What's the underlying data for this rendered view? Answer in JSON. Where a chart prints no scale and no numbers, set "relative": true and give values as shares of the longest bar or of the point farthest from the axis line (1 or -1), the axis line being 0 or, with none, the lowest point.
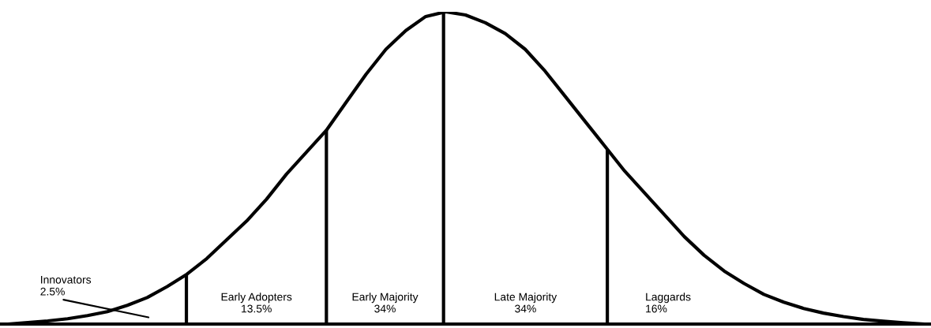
{
  "chart_data": {
    "type": "line",
    "relative": true,
    "color": "#000000",
    "marker": "none",
    "line_style": "solid",
    "categories": [
      null,
      null,
      null,
      null,
      null,
      null,
      null,
      null,
      null,
      null,
      null,
      null,
      null,
      null,
      null,
      null,
      null,
      null,
      null,
      null,
      null,
      null,
      null,
      null,
      null,
      null,
      null,
      null,
      null,
      null,
      null,
      null,
      null,
      null,
      null,
      null,
      null,
      null,
      null,
      null,
      null,
      null,
      null,
      null,
      null,
      null,
      null
    ],
    "values": [
      0.0,
      0.005,
      0.01,
      0.017,
      0.027,
      0.04,
      0.06,
      0.085,
      0.12,
      0.16,
      0.21,
      0.27,
      0.33,
      0.4,
      0.48,
      0.55,
      0.62,
      0.71,
      0.8,
      0.88,
      0.94,
      0.985,
      1.0,
      0.99,
      0.965,
      0.93,
      0.88,
      0.81,
      0.73,
      0.65,
      0.57,
      0.49,
      0.42,
      0.35,
      0.28,
      0.22,
      0.17,
      0.13,
      0.095,
      0.07,
      0.05,
      0.035,
      0.024,
      0.015,
      0.009,
      0.004,
      0.0
    ],
    "annotations": [
      "Innovators\n2.5%",
      "Early Adopters\n13.5%",
      "Early Majority\n34%",
      "Late Majority\n34%",
      "Laggards\n16%"
    ],
    "legend": false
  }
}
